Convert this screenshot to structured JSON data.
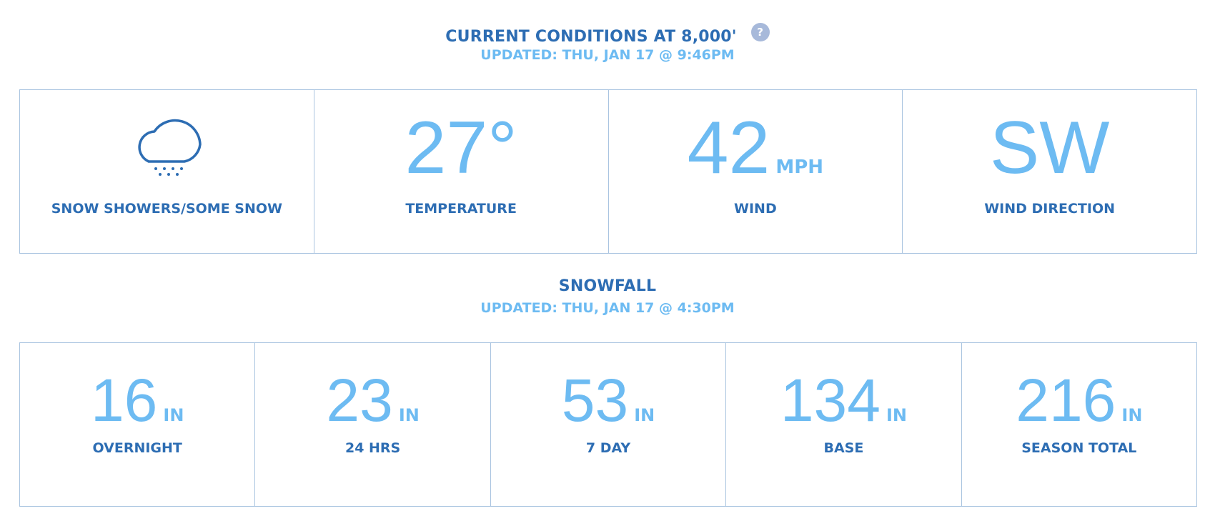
{
  "conditions": {
    "title": "CURRENT CONDITIONS AT 8,000'",
    "help": "?",
    "updated": "UPDATED: THU, JAN 17 @ 9:46PM",
    "items": [
      {
        "label": "SNOW SHOWERS/SOME SNOW"
      },
      {
        "value": "27°",
        "label": "TEMPERATURE"
      },
      {
        "value": "42",
        "unit": "MPH",
        "label": "WIND"
      },
      {
        "value": "SW",
        "label": "WIND DIRECTION"
      }
    ]
  },
  "snowfall": {
    "title": "SNOWFALL",
    "updated": "UPDATED: THU, JAN 17 @ 4:30PM",
    "items": [
      {
        "value": "16",
        "unit": "IN",
        "label": "OVERNIGHT"
      },
      {
        "value": "23",
        "unit": "IN",
        "label": "24 HRS"
      },
      {
        "value": "53",
        "unit": "IN",
        "label": "7 DAY"
      },
      {
        "value": "134",
        "unit": "IN",
        "label": "BASE"
      },
      {
        "value": "216",
        "unit": "IN",
        "label": "SEASON TOTAL"
      }
    ]
  }
}
